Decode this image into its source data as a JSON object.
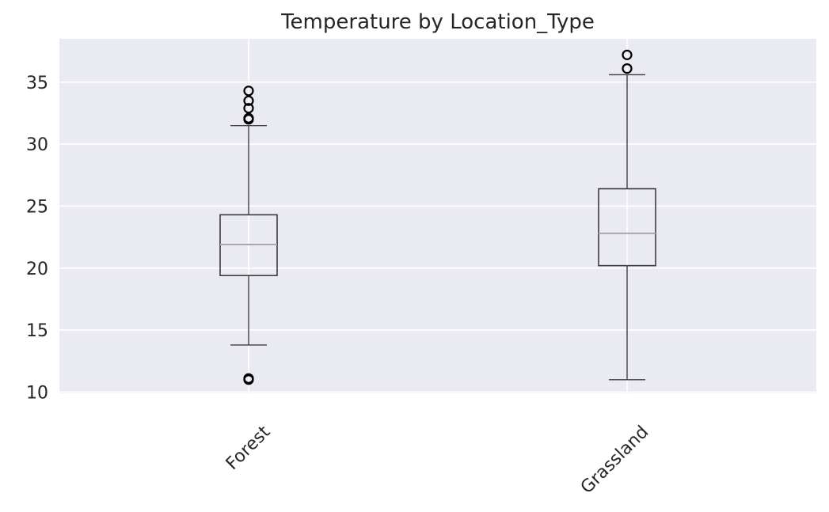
{
  "chart_data": {
    "type": "boxplot",
    "title": "Temperature by Location_Type",
    "xlabel": "",
    "ylabel": "",
    "ylim": [
      9.9,
      38.5
    ],
    "yticks": [
      10,
      15,
      20,
      25,
      30,
      35
    ],
    "grid": true,
    "categories": [
      "Forest",
      "Grassland"
    ],
    "boxes": [
      {
        "category": "Forest",
        "whisker_low": 13.8,
        "q1": 19.4,
        "median": 21.9,
        "q3": 24.3,
        "whisker_high": 31.5,
        "outliers": [
          11.0,
          11.1,
          32.0,
          32.1,
          32.9,
          33.5,
          34.3
        ]
      },
      {
        "category": "Grassland",
        "whisker_low": 11.0,
        "q1": 20.2,
        "median": 22.8,
        "q3": 26.4,
        "whisker_high": 35.6,
        "outliers": [
          36.1,
          37.2
        ]
      }
    ],
    "colors": {
      "plot_background": "#eaeaf2",
      "grid": "#ffffff",
      "box": "#3d3d3d",
      "median": "#a8a8a8",
      "text": "#262626"
    }
  }
}
